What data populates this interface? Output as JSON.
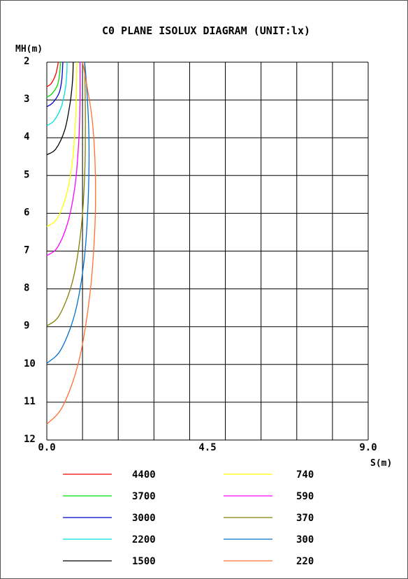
{
  "chart_data": {
    "type": "line",
    "title": "C0 PLANE ISOLUX DIAGRAM (UNIT:lx)",
    "xlabel": "S(m)",
    "ylabel": "MH(m)",
    "xlim": [
      0,
      9
    ],
    "ylim": [
      2,
      12
    ],
    "x_inverted": false,
    "y_inverted": true,
    "x_tick_labels": [
      "0.0",
      "4.5",
      "9.0"
    ],
    "x_ticks": [
      0,
      4.5,
      9
    ],
    "y_tick_labels": [
      "2",
      "3",
      "4",
      "5",
      "6",
      "7",
      "8",
      "9",
      "10",
      "11",
      "12"
    ],
    "y_ticks": [
      2,
      3,
      4,
      5,
      6,
      7,
      8,
      9,
      10,
      11,
      12
    ],
    "grid": true,
    "legend_position": "bottom",
    "series": [
      {
        "name": "4400",
        "color": "#ff0000",
        "points": [
          [
            0.0,
            2.65
          ],
          [
            0.12,
            2.57
          ],
          [
            0.24,
            2.35
          ],
          [
            0.3,
            2.12
          ],
          [
            0.32,
            2.0
          ]
        ]
      },
      {
        "name": "3700",
        "color": "#00dd00",
        "points": [
          [
            0.0,
            2.93
          ],
          [
            0.15,
            2.83
          ],
          [
            0.3,
            2.6
          ],
          [
            0.36,
            2.3
          ],
          [
            0.38,
            2.0
          ]
        ]
      },
      {
        "name": "3000",
        "color": "#0000cc",
        "points": [
          [
            0.0,
            3.18
          ],
          [
            0.17,
            3.07
          ],
          [
            0.35,
            2.8
          ],
          [
            0.42,
            2.45
          ],
          [
            0.45,
            2.0
          ]
        ]
      },
      {
        "name": "2200",
        "color": "#00e0e0",
        "points": [
          [
            0.0,
            3.68
          ],
          [
            0.2,
            3.55
          ],
          [
            0.4,
            3.2
          ],
          [
            0.52,
            2.7
          ],
          [
            0.56,
            2.3
          ],
          [
            0.57,
            2.0
          ]
        ]
      },
      {
        "name": "1500",
        "color": "#000000",
        "points": [
          [
            0.0,
            4.45
          ],
          [
            0.25,
            4.3
          ],
          [
            0.5,
            3.8
          ],
          [
            0.65,
            3.1
          ],
          [
            0.72,
            2.5
          ],
          [
            0.74,
            2.0
          ]
        ]
      },
      {
        "name": "740",
        "color": "#ffff00",
        "points": [
          [
            0.0,
            6.35
          ],
          [
            0.28,
            6.15
          ],
          [
            0.55,
            5.5
          ],
          [
            0.72,
            4.6
          ],
          [
            0.8,
            3.6
          ],
          [
            0.83,
            2.8
          ],
          [
            0.84,
            2.0
          ]
        ]
      },
      {
        "name": "590",
        "color": "#ff00ff",
        "points": [
          [
            0.0,
            7.12
          ],
          [
            0.3,
            6.9
          ],
          [
            0.6,
            6.2
          ],
          [
            0.8,
            5.2
          ],
          [
            0.9,
            4.0
          ],
          [
            0.93,
            3.0
          ],
          [
            0.93,
            2.0
          ]
        ]
      },
      {
        "name": "370",
        "color": "#808000",
        "points": [
          [
            0.0,
            8.98
          ],
          [
            0.35,
            8.7
          ],
          [
            0.72,
            7.8
          ],
          [
            0.95,
            6.5
          ],
          [
            1.06,
            5.0
          ],
          [
            1.08,
            3.5
          ],
          [
            1.06,
            2.0
          ]
        ]
      },
      {
        "name": "300",
        "color": "#0070d0",
        "points": [
          [
            0.0,
            9.97
          ],
          [
            0.4,
            9.6
          ],
          [
            0.8,
            8.6
          ],
          [
            1.05,
            7.2
          ],
          [
            1.16,
            5.6
          ],
          [
            1.18,
            4.0
          ],
          [
            1.12,
            2.7
          ],
          [
            1.06,
            2.0
          ]
        ]
      },
      {
        "name": "220",
        "color": "#ff7030",
        "points": [
          [
            0.0,
            11.58
          ],
          [
            0.45,
            11.1
          ],
          [
            0.9,
            9.9
          ],
          [
            1.2,
            8.2
          ],
          [
            1.34,
            6.5
          ],
          [
            1.36,
            5.0
          ],
          [
            1.28,
            3.6
          ],
          [
            1.12,
            2.6
          ],
          [
            1.0,
            2.0
          ]
        ]
      }
    ]
  }
}
